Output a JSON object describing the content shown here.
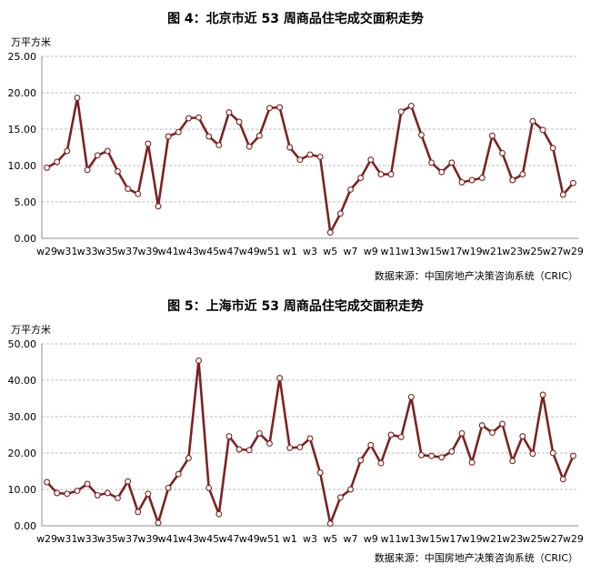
{
  "chart_data": [
    {
      "type": "line",
      "title": "图 4：北京市近 53 周商品住宅成交面积走势",
      "ylabel": "万平方米",
      "source": "数据来源：中国房地产决策咨询系统（CRIC）",
      "ylim": [
        0,
        25
      ],
      "yticks": [
        "0.00",
        "5.00",
        "10.00",
        "15.00",
        "20.00",
        "25.00"
      ],
      "xtick_labels": [
        "w29",
        "w31",
        "w33",
        "w35",
        "w37",
        "w39",
        "w41",
        "w43",
        "w45",
        "w47",
        "w49",
        "w51",
        "w1",
        "w3",
        "w5",
        "w7",
        "w9",
        "w11",
        "w13",
        "w15",
        "w17",
        "w19",
        "w21",
        "w23",
        "w25",
        "w27",
        "w29"
      ],
      "grid": true,
      "line_color": "#7b2323",
      "values": [
        9.7,
        10.5,
        12.0,
        19.3,
        9.4,
        11.4,
        12.0,
        9.2,
        6.8,
        6.1,
        13.0,
        4.4,
        14.0,
        14.6,
        16.5,
        16.6,
        14.0,
        12.8,
        17.3,
        16.0,
        12.6,
        14.1,
        17.9,
        18.0,
        12.5,
        10.8,
        11.5,
        11.2,
        0.8,
        3.4,
        6.7,
        8.3,
        10.8,
        8.8,
        8.8,
        17.4,
        18.2,
        14.2,
        10.4,
        9.1,
        10.4,
        7.7,
        8.0,
        8.3,
        14.1,
        11.7,
        8.0,
        8.8,
        16.1,
        14.9,
        12.4,
        6.0,
        7.6
      ]
    },
    {
      "type": "line",
      "title": "图 5：上海市近 53 周商品住宅成交面积走势",
      "ylabel": "万平方米",
      "source": "数据来源：中国房地产决策咨询系统（CRIC）",
      "ylim": [
        0,
        50
      ],
      "yticks": [
        "0.00",
        "10.00",
        "20.00",
        "30.00",
        "40.00",
        "50.00"
      ],
      "xtick_labels": [
        "w29",
        "w31",
        "w33",
        "w35",
        "w37",
        "w39",
        "w41",
        "w43",
        "w45",
        "w47",
        "w49",
        "w51",
        "w1",
        "w3",
        "w5",
        "w7",
        "w9",
        "w11",
        "w13",
        "w15",
        "w17",
        "w19",
        "w21",
        "w23",
        "w25",
        "w27",
        "w29"
      ],
      "grid": true,
      "line_color": "#7b2323",
      "values": [
        12.0,
        9.0,
        8.8,
        9.6,
        11.5,
        8.4,
        9.0,
        7.6,
        12.2,
        3.8,
        8.8,
        0.8,
        10.4,
        14.2,
        18.6,
        45.4,
        10.4,
        3.2,
        24.6,
        21.0,
        20.8,
        25.4,
        22.6,
        40.6,
        21.4,
        21.6,
        24.0,
        14.6,
        0.6,
        7.8,
        10.0,
        18.0,
        22.2,
        17.2,
        25.0,
        24.4,
        35.4,
        19.4,
        19.2,
        18.8,
        20.4,
        25.4,
        17.4,
        27.6,
        25.6,
        28.0,
        17.8,
        24.6,
        19.8,
        36.0,
        20.0,
        12.8,
        19.2
      ]
    }
  ]
}
